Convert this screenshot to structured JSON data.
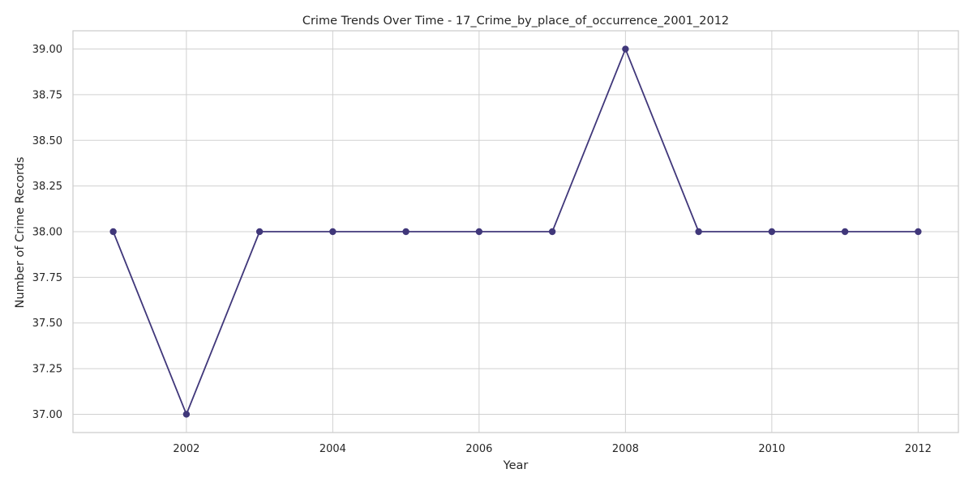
{
  "chart_data": {
    "type": "line",
    "title": "Crime Trends Over Time - 17_Crime_by_place_of_occurrence_2001_2012",
    "xlabel": "Year",
    "ylabel": "Number of Crime Records",
    "x": [
      2001,
      2002,
      2003,
      2004,
      2005,
      2006,
      2007,
      2008,
      2009,
      2010,
      2011,
      2012
    ],
    "series": [
      {
        "values": [
          38,
          37,
          38,
          38,
          38,
          38,
          38,
          39,
          38,
          38,
          38,
          38
        ],
        "color": "#40377a",
        "marker": "circle"
      }
    ],
    "x_ticks": [
      2002,
      2004,
      2006,
      2008,
      2010,
      2012
    ],
    "y_ticks": [
      37.0,
      37.25,
      37.5,
      37.75,
      38.0,
      38.25,
      38.5,
      38.75,
      39.0
    ],
    "y_tick_labels": [
      "37.00",
      "37.25",
      "37.50",
      "37.75",
      "38.00",
      "38.25",
      "38.50",
      "38.75",
      "39.00"
    ],
    "xlim": [
      2000.45,
      2012.55
    ],
    "ylim": [
      36.9,
      39.1
    ],
    "grid": true,
    "legend": "none"
  }
}
